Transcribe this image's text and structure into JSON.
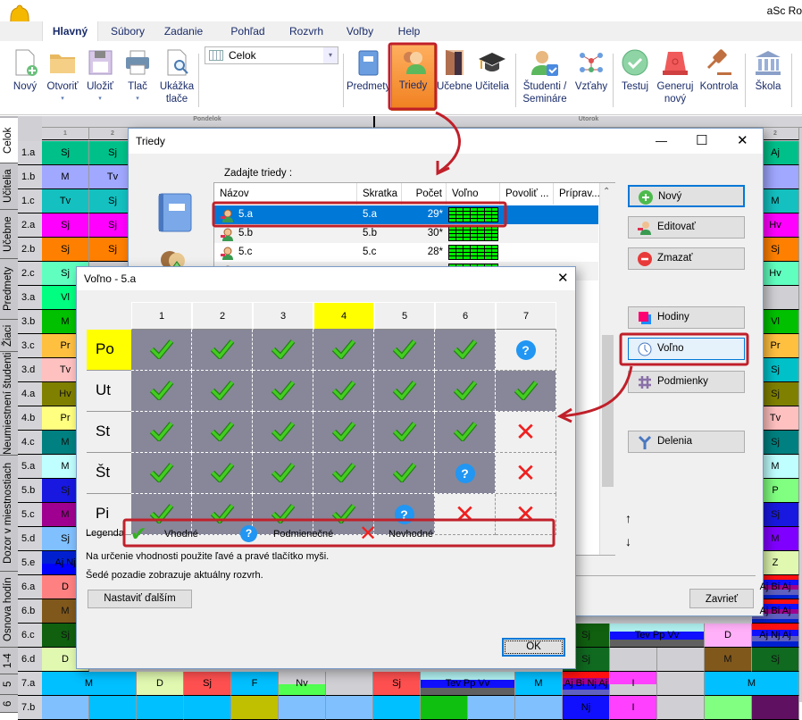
{
  "app": {
    "title": "aSc Ro",
    "logo_text": "aSc"
  },
  "tabs": [
    "Hlavný",
    "Súbory",
    "Zadanie",
    "Pohľad",
    "Rozvrh",
    "Voľby",
    "Help"
  ],
  "ribbon": {
    "items": [
      {
        "label": "Nový",
        "icon": "new-document-icon"
      },
      {
        "label": "Otvoriť",
        "icon": "folder-icon",
        "dropdown": true
      },
      {
        "label": "Uložiť",
        "icon": "save-icon",
        "dropdown": true
      },
      {
        "label": "Tlač",
        "icon": "printer-icon",
        "dropdown": true
      },
      {
        "label": "Ukážka tlače",
        "icon": "print-preview-icon"
      },
      {
        "label": "Predmety",
        "icon": "book-icon"
      },
      {
        "label": "Triedy",
        "icon": "class-icon",
        "highlighted": true
      },
      {
        "label": "Učebne",
        "icon": "door-icon"
      },
      {
        "label": "Učitelia",
        "icon": "graduation-cap-icon"
      },
      {
        "label": "Študenti / Semináre",
        "icon": "student-icon"
      },
      {
        "label": "Vzťahy",
        "icon": "relations-icon"
      },
      {
        "label": "Testuj",
        "icon": "check-badge-icon"
      },
      {
        "label": "Generuj nový",
        "icon": "siren-icon"
      },
      {
        "label": "Kontrola",
        "icon": "gavel-icon"
      },
      {
        "label": "Škola",
        "icon": "school-building-icon"
      }
    ],
    "view_select": "Celok",
    "dropdown_arrow": "▾"
  },
  "timetable": {
    "side_tabs": [
      "Celok",
      "Učitelia",
      "Učebne",
      "Predmety",
      "Žiaci",
      "Neumiestnení študenti",
      "Dozor v miestnostiach",
      "Osnova hodín",
      "1-4",
      "5",
      "6"
    ],
    "days": [
      "Pondelok",
      "Utorok"
    ],
    "period_headers": [
      {
        "col": 0,
        "t": "1"
      },
      {
        "col": 1,
        "t": "2"
      },
      {
        "col": 15,
        "t": "2"
      }
    ],
    "rows": [
      {
        "label": "1.a",
        "cells": [
          {
            "c": 0,
            "t": "Sj",
            "bg": "#00c08a"
          },
          {
            "c": 1,
            "t": "Sj",
            "bg": "#00c08a"
          },
          {
            "c": 15,
            "t": "Aj",
            "bg": "#00c08a"
          }
        ]
      },
      {
        "label": "1.b",
        "cells": [
          {
            "c": 0,
            "t": "M",
            "bg": "#a0a8ff"
          },
          {
            "c": 1,
            "t": "Tv",
            "bg": "#a0a8ff"
          },
          {
            "c": 15,
            "t": "",
            "bg": "#a0a8ff"
          }
        ]
      },
      {
        "label": "1.c",
        "cells": [
          {
            "c": 0,
            "t": "Tv",
            "bg": "#14c0c0"
          },
          {
            "c": 1,
            "t": "Sj",
            "bg": "#14c0c0"
          },
          {
            "c": 15,
            "t": "M",
            "bg": "#14c0c0"
          }
        ]
      },
      {
        "label": "2.a",
        "cells": [
          {
            "c": 0,
            "t": "Sj",
            "bg": "#ff00ff"
          },
          {
            "c": 1,
            "t": "Sj",
            "bg": "#ff00ff"
          },
          {
            "c": 15,
            "t": "Hv",
            "bg": "#ff00ff"
          }
        ]
      },
      {
        "label": "2.b",
        "cells": [
          {
            "c": 0,
            "t": "Sj",
            "bg": "#ff8000"
          },
          {
            "c": 1,
            "t": "Sj",
            "bg": "#ff8000"
          },
          {
            "c": 15,
            "t": "Sj",
            "bg": "#ff8000"
          }
        ]
      },
      {
        "label": "2.c",
        "cells": [
          {
            "c": 0,
            "t": "Sj",
            "bg": "#60ffc0"
          },
          {
            "c": 15,
            "t": "Hv",
            "bg": "#60ffc0"
          }
        ]
      },
      {
        "label": "3.a",
        "cells": [
          {
            "c": 0,
            "t": "Vl",
            "bg": "#00ff80"
          },
          {
            "c": 15,
            "t": "",
            "bg": "#d0d0d4"
          }
        ]
      },
      {
        "label": "3.b",
        "cells": [
          {
            "c": 0,
            "t": "M",
            "bg": "#00c000"
          },
          {
            "c": 15,
            "t": "Vl",
            "bg": "#00c000"
          }
        ]
      },
      {
        "label": "3.c",
        "cells": [
          {
            "c": 0,
            "t": "Pr",
            "bg": "#ffc040"
          },
          {
            "c": 15,
            "t": "Pr",
            "bg": "#ffc040"
          }
        ]
      },
      {
        "label": "3.d",
        "cells": [
          {
            "c": 0,
            "t": "Tv",
            "bg": "#ffc0c0"
          },
          {
            "c": 15,
            "t": "Sj",
            "bg": "#00c0c8"
          }
        ]
      },
      {
        "label": "4.a",
        "cells": [
          {
            "c": 0,
            "t": "Hv",
            "bg": "#808000"
          },
          {
            "c": 15,
            "t": "Sj",
            "bg": "#808000"
          }
        ]
      },
      {
        "label": "4.b",
        "cells": [
          {
            "c": 0,
            "t": "Pr",
            "bg": "#ffff80"
          },
          {
            "c": 15,
            "t": "Tv",
            "bg": "#ffc0c0"
          }
        ]
      },
      {
        "label": "4.c",
        "cells": [
          {
            "c": 0,
            "t": "M",
            "bg": "#008080"
          },
          {
            "c": 15,
            "t": "Sj",
            "bg": "#008080"
          }
        ]
      },
      {
        "label": "5.a",
        "cells": [
          {
            "c": 0,
            "t": "M",
            "bg": "#c0ffff"
          },
          {
            "c": 15,
            "t": "M",
            "bg": "#c0ffff"
          }
        ]
      },
      {
        "label": "5.b",
        "cells": [
          {
            "c": 0,
            "t": "Sj",
            "bg": "#1818e0"
          },
          {
            "c": 15,
            "t": "P",
            "bg": "#80ff80"
          }
        ]
      },
      {
        "label": "5.c",
        "cells": [
          {
            "c": 0,
            "t": "M",
            "bg": "#a00090"
          },
          {
            "c": 15,
            "t": "Sj",
            "bg": "#1818e0"
          }
        ]
      },
      {
        "label": "5.d",
        "cells": [
          {
            "c": 0,
            "t": "Sj",
            "bg": "#80c0ff"
          },
          {
            "c": 15,
            "t": "M",
            "bg": "#8000ff"
          }
        ]
      },
      {
        "label": "5.e",
        "cells": [
          {
            "c": 0,
            "t": "Aj Nj",
            "stripes": [
              "#0020d0",
              "#0000ff"
            ]
          },
          {
            "c": 15,
            "t": "Z",
            "bg": "#e0f8b0"
          }
        ]
      },
      {
        "label": "6.a",
        "cells": [
          {
            "c": 0,
            "t": "D",
            "bg": "#ff8080"
          },
          {
            "c": 15,
            "t": "Aj Bi Aj",
            "stripes": [
              "#ff1010",
              "#1010ff",
              "#a00090",
              "#6060c0",
              "#0020d0"
            ]
          }
        ]
      },
      {
        "label": "6.b",
        "cells": [
          {
            "c": 0,
            "t": "M",
            "bg": "#80581c"
          },
          {
            "c": 15,
            "t": "Aj Bi Aj",
            "stripes": [
              "#ff1010",
              "#1010ff",
              "#a00090",
              "#6060c0",
              "#0020d0"
            ]
          }
        ]
      },
      {
        "label": "6.c",
        "cells": [
          {
            "c": 0,
            "t": "Sj",
            "bg": "#106010"
          },
          {
            "c": 11,
            "t": "Sj",
            "bg": "#106010"
          },
          {
            "c": 12,
            "s": 2,
            "t": "Tev Pp Vv",
            "stripes": [
              "#b0f0f0",
              "#1010ff",
              "#606060"
            ]
          },
          {
            "c": 14,
            "t": "D",
            "bg": "#ffb0f8"
          },
          {
            "c": 15,
            "t": "Aj Nj Aj",
            "stripes": [
              "#ff1010",
              "#1010ff",
              "#6060c0",
              "#0020d0"
            ]
          }
        ]
      },
      {
        "label": "6.d",
        "cells": [
          {
            "c": 0,
            "t": "D",
            "bg": "#e0f8b0"
          },
          {
            "c": 11,
            "t": "Sj",
            "bg": "#106a20"
          },
          {
            "c": 12,
            "t": "",
            "bg": "#d0d0d4"
          },
          {
            "c": 13,
            "t": "",
            "bg": "#d0d0d4"
          },
          {
            "c": 14,
            "t": "M",
            "bg": "#80581c"
          },
          {
            "c": 15,
            "t": "Sj",
            "bg": "#106a20"
          }
        ]
      },
      {
        "label": "7.a",
        "cells": [
          {
            "c": 0,
            "s": 2,
            "t": "M",
            "bg": "#00c0ff"
          },
          {
            "c": 2,
            "t": "D",
            "bg": "#e0f8b0"
          },
          {
            "c": 3,
            "t": "Sj",
            "bg": "#ff5050"
          },
          {
            "c": 4,
            "t": "F",
            "bg": "#00c0ff"
          },
          {
            "c": 5,
            "t": "Nv",
            "stripes": [
              "#d0d0d4",
              "#50ff50"
            ]
          },
          {
            "c": 6,
            "t": "",
            "bg": "#d0d0d4"
          },
          {
            "c": 7,
            "t": "Sj",
            "bg": "#ff5050"
          },
          {
            "c": 8,
            "s": 2,
            "t": "Tev Pp Vv",
            "stripes": [
              "#b0f0f0",
              "#1010ff",
              "#606060"
            ]
          },
          {
            "c": 10,
            "t": "M",
            "bg": "#00c0ff"
          },
          {
            "c": 11,
            "t": "Aj Bi Nj Aj",
            "stripes": [
              "#ff1010",
              "#a00090",
              "#1010ff",
              "#6060c0"
            ]
          },
          {
            "c": 12,
            "t": "I",
            "stripes": [
              "#ff40ff",
              "#d0d0d4"
            ]
          },
          {
            "c": 13,
            "t": "",
            "bg": "#d0d0d4"
          },
          {
            "c": 14,
            "s": 2,
            "t": "M",
            "bg": "#00c0ff"
          }
        ]
      },
      {
        "label": "7.b",
        "cells": [
          {
            "c": 0,
            "t": "",
            "bg": "#80c0ff"
          },
          {
            "c": 1,
            "t": "",
            "bg": "#00c0ff"
          },
          {
            "c": 2,
            "t": "",
            "bg": "#00c0ff"
          },
          {
            "c": 3,
            "t": "",
            "bg": "#00c0ff"
          },
          {
            "c": 4,
            "t": "",
            "bg": "#c0c000"
          },
          {
            "c": 5,
            "t": "",
            "bg": "#80c0ff"
          },
          {
            "c": 6,
            "t": "",
            "bg": "#80c0ff"
          },
          {
            "c": 7,
            "t": "",
            "bg": "#00c0ff"
          },
          {
            "c": 8,
            "t": "",
            "bg": "#10c010"
          },
          {
            "c": 9,
            "t": "",
            "bg": "#80c0ff"
          },
          {
            "c": 10,
            "t": "",
            "bg": "#80c0ff"
          },
          {
            "c": 11,
            "t": "Nj",
            "bg": "#1010ff"
          },
          {
            "c": 12,
            "t": "I",
            "bg": "#ff40ff"
          },
          {
            "c": 13,
            "t": "",
            "bg": "#d0d0d4"
          },
          {
            "c": 14,
            "t": "",
            "bg": "#80ff80"
          },
          {
            "c": 15,
            "t": "",
            "bg": "#601060"
          }
        ]
      }
    ]
  },
  "classes_dialog": {
    "title": "Triedy",
    "prompt": "Zadajte triedy  :",
    "columns": [
      "Názov",
      "Skratka",
      "Počet",
      "Voľno",
      "Povoliť ...",
      "Príprav..."
    ],
    "rows": [
      {
        "name": "5.a",
        "short": "5.a",
        "count": "29*",
        "selected": true
      },
      {
        "name": "5.b",
        "short": "5.b",
        "count": "30*"
      },
      {
        "name": "5.c",
        "short": "5.c",
        "count": "28*"
      },
      {
        "name": "",
        "short": "",
        "count": ""
      }
    ],
    "buttons": [
      "Nový",
      "Editovať",
      "Zmazať",
      "Hodiny",
      "Voľno",
      "Podmienky",
      "Delenia"
    ],
    "up_arrow": "↑",
    "down_arrow": "↓",
    "close_label": "Zavrieť",
    "window_controls": {
      "minimize": "—",
      "maximize": "☐",
      "close": "✕"
    }
  },
  "free_dialog": {
    "title": "Voľno - 5.a",
    "close": "✕",
    "periods": [
      "1",
      "2",
      "3",
      "4",
      "5",
      "6",
      "7"
    ],
    "highlighted_period": "4",
    "days": [
      {
        "label": "Po",
        "highlighted": true,
        "cells": [
          [
            "ok",
            1
          ],
          [
            "ok",
            1
          ],
          [
            "ok",
            1
          ],
          [
            "ok",
            1
          ],
          [
            "ok",
            1
          ],
          [
            "ok",
            1
          ],
          [
            "maybe",
            0
          ]
        ]
      },
      {
        "label": "Ut",
        "cells": [
          [
            "ok",
            1
          ],
          [
            "ok",
            1
          ],
          [
            "ok",
            1
          ],
          [
            "ok",
            1
          ],
          [
            "ok",
            1
          ],
          [
            "ok",
            1
          ],
          [
            "ok",
            1
          ]
        ]
      },
      {
        "label": "St",
        "cells": [
          [
            "ok",
            1
          ],
          [
            "ok",
            1
          ],
          [
            "ok",
            1
          ],
          [
            "ok",
            1
          ],
          [
            "ok",
            1
          ],
          [
            "ok",
            1
          ],
          [
            "no",
            0
          ]
        ]
      },
      {
        "label": "Št",
        "cells": [
          [
            "ok",
            1
          ],
          [
            "ok",
            1
          ],
          [
            "ok",
            1
          ],
          [
            "ok",
            1
          ],
          [
            "ok",
            1
          ],
          [
            "maybe",
            1
          ],
          [
            "no",
            0
          ]
        ]
      },
      {
        "label": "Pi",
        "cells": [
          [
            "ok",
            1
          ],
          [
            "ok",
            1
          ],
          [
            "ok",
            1
          ],
          [
            "ok",
            1
          ],
          [
            "maybe",
            1
          ],
          [
            "no",
            0
          ],
          [
            "no",
            0
          ]
        ]
      }
    ],
    "legend_label": "Legenda",
    "legend": {
      "ok": "Vhodné",
      "maybe": "Podmienečné",
      "no": "Nevhodné"
    },
    "hint1": "Na určenie vhodnosti použite ľavé a pravé tlačítko myši.",
    "hint2": "Šedé pozadie zobrazuje aktuálny rozvrh.",
    "apply_others": "Nastaviť ďalším",
    "ok": "OK",
    "symbols": {
      "ok": "✔",
      "maybe": "?",
      "no": "✕"
    }
  },
  "colors": {
    "accent": "#0078d7",
    "annotation": "#c0202a",
    "highlight": "#ffff00",
    "current_schedule": "#878799",
    "ok": "#33b020"
  }
}
